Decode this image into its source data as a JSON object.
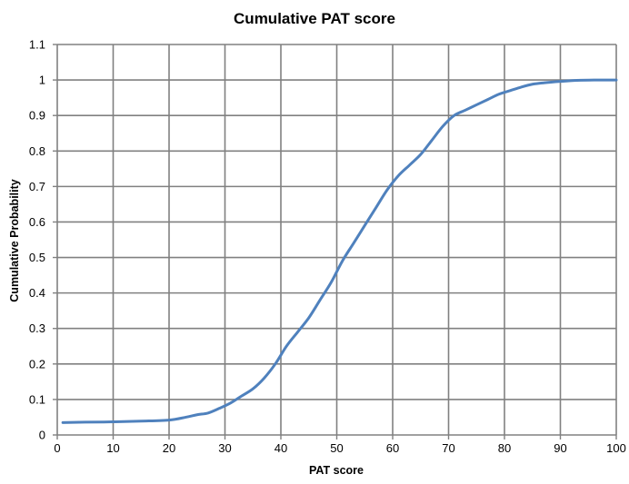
{
  "chart_data": {
    "type": "line",
    "title": "Cumulative PAT score",
    "xlabel": "PAT score",
    "ylabel": "Cumulative Probability",
    "xlim": [
      0,
      100
    ],
    "ylim": [
      0,
      1.1
    ],
    "x_ticks": [
      0,
      10,
      20,
      30,
      40,
      50,
      60,
      70,
      80,
      90,
      100
    ],
    "y_ticks": [
      0,
      0.1,
      0.2,
      0.3,
      0.4,
      0.5,
      0.6,
      0.7,
      0.8,
      0.9,
      1,
      1.1
    ],
    "x_tick_labels": [
      "0",
      "10",
      "20",
      "30",
      "40",
      "50",
      "60",
      "70",
      "80",
      "90",
      "100"
    ],
    "y_tick_labels": [
      "0",
      "0.1",
      "0.2",
      "0.3",
      "0.4",
      "0.5",
      "0.6",
      "0.7",
      "0.8",
      "0.9",
      "1",
      "1.1"
    ],
    "grid": true,
    "legend": "none",
    "line_color": "#4F81BD",
    "grid_color": "#808080",
    "series": [
      {
        "x": [
          1,
          5,
          10,
          15,
          20,
          23,
          25,
          27,
          29,
          31,
          33,
          35,
          37,
          39,
          41,
          43,
          45,
          47,
          49,
          51,
          53,
          55,
          57,
          59,
          61,
          63,
          65,
          67,
          69,
          71,
          73,
          75,
          77,
          79,
          81,
          83,
          85,
          87,
          90,
          93,
          96,
          100
        ],
        "y": [
          0.035,
          0.036,
          0.037,
          0.039,
          0.042,
          0.05,
          0.057,
          0.062,
          0.075,
          0.09,
          0.11,
          0.13,
          0.16,
          0.2,
          0.25,
          0.29,
          0.33,
          0.38,
          0.43,
          0.49,
          0.54,
          0.59,
          0.64,
          0.69,
          0.73,
          0.76,
          0.79,
          0.83,
          0.87,
          0.9,
          0.915,
          0.93,
          0.945,
          0.96,
          0.97,
          0.98,
          0.988,
          0.992,
          0.996,
          0.999,
          1.0,
          1.0
        ]
      }
    ]
  }
}
